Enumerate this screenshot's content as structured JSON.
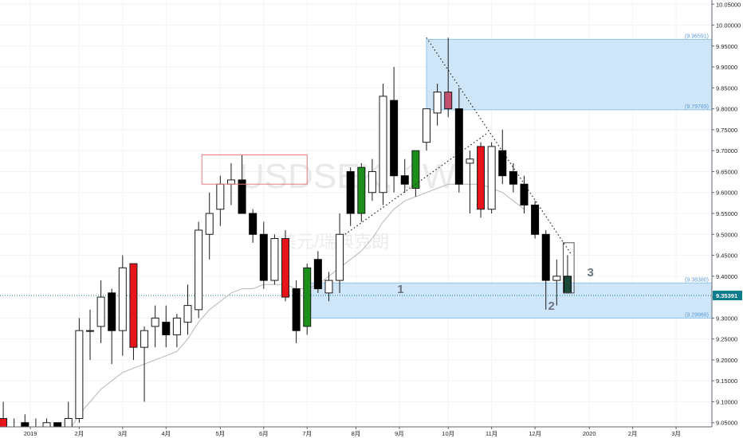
{
  "chart_data": {
    "type": "candlestick",
    "symbol_watermark": "USDSEK, 1W",
    "name_watermark": "美元/瑞典克朗",
    "y_axis": {
      "range": [
        9.04,
        10.06
      ],
      "ticks": [
        "10.05000",
        "10.00000",
        "9.95000",
        "9.90000",
        "9.85000",
        "9.80000",
        "9.75000",
        "9.70000",
        "9.65000",
        "9.60000",
        "9.55000",
        "9.50000",
        "9.45000",
        "9.40000",
        "9.35000",
        "9.30000",
        "9.25000",
        "9.20000",
        "9.15000",
        "9.10000",
        "9.05000"
      ],
      "tick_values": [
        10.05,
        10.0,
        9.95,
        9.9,
        9.85,
        9.8,
        9.75,
        9.7,
        9.65,
        9.6,
        9.55,
        9.5,
        9.45,
        9.4,
        9.35,
        9.3,
        9.25,
        9.2,
        9.15,
        9.1,
        9.05
      ]
    },
    "x_axis": {
      "labels": [
        "2019",
        "2月",
        "3月",
        "4月",
        "5月",
        "6月",
        "7月",
        "8月",
        "9月",
        "10月",
        "11月",
        "12月",
        "2020",
        "2月",
        "3月"
      ],
      "label_index": [
        -3.5,
        1,
        5,
        9,
        14,
        18,
        22,
        26.5,
        30.5,
        35,
        39,
        43,
        48,
        52,
        56
      ]
    },
    "index_range": [
      -6.3,
      59.3
    ],
    "current_price": {
      "value": 9.35391,
      "label": "9.35391",
      "color": "#0d7c8c"
    },
    "zones": [
      {
        "name": "supply-zone",
        "x1_index": 33,
        "x2_index": 59.3,
        "top": 9.96591,
        "bottom": 9.79769,
        "top_label": "(9.96591)",
        "bottom_label": "(9.79769)",
        "fill": "#cfe6f9",
        "stroke": "#90c5ee"
      },
      {
        "name": "demand-zone",
        "x1_index": 22,
        "x2_index": 59.3,
        "top": 9.3838,
        "bottom": 9.29968,
        "top_label": "(9.38380)",
        "bottom_label": "(9.29968)",
        "fill": "#cfe6f9",
        "stroke": "#90c5ee"
      }
    ],
    "highlight_box": {
      "x1_index": 12.3,
      "x2_index": 22,
      "top": 9.69,
      "bottom": 9.62,
      "stroke": "#e77c7c"
    },
    "projection_box": {
      "x1_index": 45.6,
      "x2_index": 46.6,
      "top": 9.48,
      "bottom": 9.36,
      "stroke": "#555555"
    },
    "trendlines": [
      {
        "x1_index": 33,
        "y1": 9.97,
        "x2_index": 46.4,
        "y2": 9.45
      },
      {
        "x1_index": 25.5,
        "y1": 9.5,
        "x2_index": 38.5,
        "y2": 9.74
      }
    ],
    "annotations": [
      {
        "text": "1",
        "x_index": 30.3,
        "y": 9.36
      },
      {
        "text": "2",
        "x_index": 44.2,
        "y": 9.32
      },
      {
        "text": "3",
        "x_index": 47.8,
        "y": 9.4
      }
    ],
    "ma": [
      [
        0.3,
        9.04
      ],
      [
        1,
        9.07
      ],
      [
        2,
        9.1
      ],
      [
        3,
        9.13
      ],
      [
        4,
        9.15
      ],
      [
        5,
        9.17
      ],
      [
        6,
        9.18
      ],
      [
        7,
        9.19
      ],
      [
        8,
        9.2
      ],
      [
        9,
        9.21
      ],
      [
        10,
        9.22
      ],
      [
        11,
        9.25
      ],
      [
        12,
        9.29
      ],
      [
        13,
        9.32
      ],
      [
        14,
        9.34
      ],
      [
        15,
        9.36
      ],
      [
        16,
        9.37
      ],
      [
        17,
        9.37
      ],
      [
        18,
        9.38
      ],
      [
        19,
        9.38
      ],
      [
        20,
        9.38
      ],
      [
        21,
        9.37
      ],
      [
        22,
        9.37
      ],
      [
        23,
        9.38
      ],
      [
        24,
        9.4
      ],
      [
        25,
        9.42
      ],
      [
        26,
        9.44
      ],
      [
        27,
        9.46
      ],
      [
        28,
        9.49
      ],
      [
        29,
        9.53
      ],
      [
        30,
        9.56
      ],
      [
        31,
        9.58
      ],
      [
        32,
        9.59
      ],
      [
        33,
        9.6
      ],
      [
        34,
        9.61
      ],
      [
        35,
        9.62
      ],
      [
        36,
        9.62
      ],
      [
        37,
        9.62
      ],
      [
        38,
        9.62
      ],
      [
        39,
        9.61
      ],
      [
        40,
        9.6
      ],
      [
        41,
        9.58
      ],
      [
        42,
        9.56
      ]
    ],
    "candles": [
      {
        "i": -6,
        "o": 9.06,
        "h": 9.1,
        "l": 9.04,
        "c": 9.04,
        "k": "red"
      },
      {
        "i": -5,
        "o": 9.04,
        "h": 9.06,
        "l": 9.03,
        "c": 9.04,
        "k": "black"
      },
      {
        "i": -4,
        "o": 9.05,
        "h": 9.07,
        "l": 9.02,
        "c": 9.04,
        "k": "black"
      },
      {
        "i": -3,
        "o": 9.04,
        "h": 9.06,
        "l": 9.03,
        "c": 9.04,
        "k": "black"
      },
      {
        "i": -2,
        "o": 9.03,
        "h": 9.06,
        "l": 9.0,
        "c": 9.05,
        "k": "white"
      },
      {
        "i": -1,
        "o": 9.05,
        "h": 9.05,
        "l": 9.0,
        "c": 9.02,
        "k": "black"
      },
      {
        "i": 0,
        "o": 9.02,
        "h": 9.1,
        "l": 9.0,
        "c": 9.06,
        "k": "white"
      },
      {
        "i": 1,
        "o": 9.06,
        "h": 9.3,
        "l": 9.05,
        "c": 9.27,
        "k": "white"
      },
      {
        "i": 2,
        "o": 9.27,
        "h": 9.32,
        "l": 9.2,
        "c": 9.27,
        "k": "white"
      },
      {
        "i": 3,
        "o": 9.28,
        "h": 9.39,
        "l": 9.24,
        "c": 9.35,
        "k": "white"
      },
      {
        "i": 4,
        "o": 9.36,
        "h": 9.37,
        "l": 9.19,
        "c": 9.27,
        "k": "black"
      },
      {
        "i": 5,
        "o": 9.27,
        "h": 9.45,
        "l": 9.21,
        "c": 9.42,
        "k": "white"
      },
      {
        "i": 6,
        "o": 9.43,
        "h": 9.43,
        "l": 9.2,
        "c": 9.23,
        "k": "red"
      },
      {
        "i": 7,
        "o": 9.23,
        "h": 9.28,
        "l": 9.1,
        "c": 9.27,
        "k": "white"
      },
      {
        "i": 8,
        "o": 9.28,
        "h": 9.33,
        "l": 9.23,
        "c": 9.3,
        "k": "white"
      },
      {
        "i": 9,
        "o": 9.29,
        "h": 9.33,
        "l": 9.23,
        "c": 9.26,
        "k": "black"
      },
      {
        "i": 10,
        "o": 9.26,
        "h": 9.31,
        "l": 9.23,
        "c": 9.3,
        "k": "white"
      },
      {
        "i": 11,
        "o": 9.29,
        "h": 9.38,
        "l": 9.26,
        "c": 9.33,
        "k": "white"
      },
      {
        "i": 12,
        "o": 9.32,
        "h": 9.53,
        "l": 9.3,
        "c": 9.51,
        "k": "white"
      },
      {
        "i": 13,
        "o": 9.5,
        "h": 9.6,
        "l": 9.44,
        "c": 9.55,
        "k": "white"
      },
      {
        "i": 14,
        "o": 9.56,
        "h": 9.64,
        "l": 9.52,
        "c": 9.62,
        "k": "white"
      },
      {
        "i": 15,
        "o": 9.62,
        "h": 9.67,
        "l": 9.57,
        "c": 9.63,
        "k": "white"
      },
      {
        "i": 16,
        "o": 9.63,
        "h": 9.69,
        "l": 9.56,
        "c": 9.55,
        "k": "black"
      },
      {
        "i": 17,
        "o": 9.55,
        "h": 9.56,
        "l": 9.48,
        "c": 9.5,
        "k": "black"
      },
      {
        "i": 18,
        "o": 9.5,
        "h": 9.53,
        "l": 9.37,
        "c": 9.39,
        "k": "black"
      },
      {
        "i": 19,
        "o": 9.39,
        "h": 9.5,
        "l": 9.38,
        "c": 9.49,
        "k": "white"
      },
      {
        "i": 20,
        "o": 9.49,
        "h": 9.51,
        "l": 9.34,
        "c": 9.35,
        "k": "red"
      },
      {
        "i": 21,
        "o": 9.37,
        "h": 9.39,
        "l": 9.24,
        "c": 9.27,
        "k": "black"
      },
      {
        "i": 22,
        "o": 9.28,
        "h": 9.43,
        "l": 9.26,
        "c": 9.42,
        "k": "green"
      },
      {
        "i": 23,
        "o": 9.44,
        "h": 9.46,
        "l": 9.36,
        "c": 9.37,
        "k": "black"
      },
      {
        "i": 24,
        "o": 9.36,
        "h": 9.41,
        "l": 9.34,
        "c": 9.39,
        "k": "white"
      },
      {
        "i": 25,
        "o": 9.39,
        "h": 9.55,
        "l": 9.36,
        "c": 9.5,
        "k": "white"
      },
      {
        "i": 26,
        "o": 9.65,
        "h": 9.66,
        "l": 9.52,
        "c": 9.55,
        "k": "black"
      },
      {
        "i": 27,
        "o": 9.55,
        "h": 9.67,
        "l": 9.53,
        "c": 9.66,
        "k": "green"
      },
      {
        "i": 28,
        "o": 9.6,
        "h": 9.68,
        "l": 9.58,
        "c": 9.65,
        "k": "white"
      },
      {
        "i": 29,
        "o": 9.6,
        "h": 9.86,
        "l": 9.57,
        "c": 9.83,
        "k": "white"
      },
      {
        "i": 30,
        "o": 9.82,
        "h": 9.9,
        "l": 9.6,
        "c": 9.64,
        "k": "black"
      },
      {
        "i": 31,
        "o": 9.64,
        "h": 9.68,
        "l": 9.6,
        "c": 9.62,
        "k": "black"
      },
      {
        "i": 32,
        "o": 9.61,
        "h": 9.7,
        "l": 9.59,
        "c": 9.7,
        "k": "green"
      },
      {
        "i": 33,
        "o": 9.72,
        "h": 9.8,
        "l": 9.7,
        "c": 9.8,
        "k": "white"
      },
      {
        "i": 34,
        "o": 9.79,
        "h": 9.86,
        "l": 9.76,
        "c": 9.84,
        "k": "white"
      },
      {
        "i": 35,
        "o": 9.84,
        "h": 9.97,
        "l": 9.78,
        "c": 9.8,
        "k": "pink"
      },
      {
        "i": 36,
        "o": 9.8,
        "h": 9.85,
        "l": 9.6,
        "c": 9.62,
        "k": "black"
      },
      {
        "i": 37,
        "o": 9.67,
        "h": 9.7,
        "l": 9.55,
        "c": 9.68,
        "k": "white"
      },
      {
        "i": 38,
        "o": 9.71,
        "h": 9.72,
        "l": 9.54,
        "c": 9.56,
        "k": "red"
      },
      {
        "i": 39,
        "o": 9.56,
        "h": 9.72,
        "l": 9.55,
        "c": 9.71,
        "k": "white"
      },
      {
        "i": 40,
        "o": 9.7,
        "h": 9.75,
        "l": 9.62,
        "c": 9.64,
        "k": "black"
      },
      {
        "i": 41,
        "o": 9.65,
        "h": 9.67,
        "l": 9.6,
        "c": 9.62,
        "k": "black"
      },
      {
        "i": 42,
        "o": 9.62,
        "h": 9.64,
        "l": 9.55,
        "c": 9.57,
        "k": "black"
      },
      {
        "i": 43,
        "o": 9.57,
        "h": 9.58,
        "l": 9.49,
        "c": 9.5,
        "k": "black"
      },
      {
        "i": 44,
        "o": 9.5,
        "h": 9.51,
        "l": 9.32,
        "c": 9.39,
        "k": "black"
      },
      {
        "i": 45,
        "o": 9.39,
        "h": 9.44,
        "l": 9.33,
        "c": 9.4,
        "k": "white"
      },
      {
        "i": 46,
        "o": 9.4,
        "h": 9.45,
        "l": 9.37,
        "c": 9.36,
        "k": "darkgreen"
      }
    ]
  }
}
